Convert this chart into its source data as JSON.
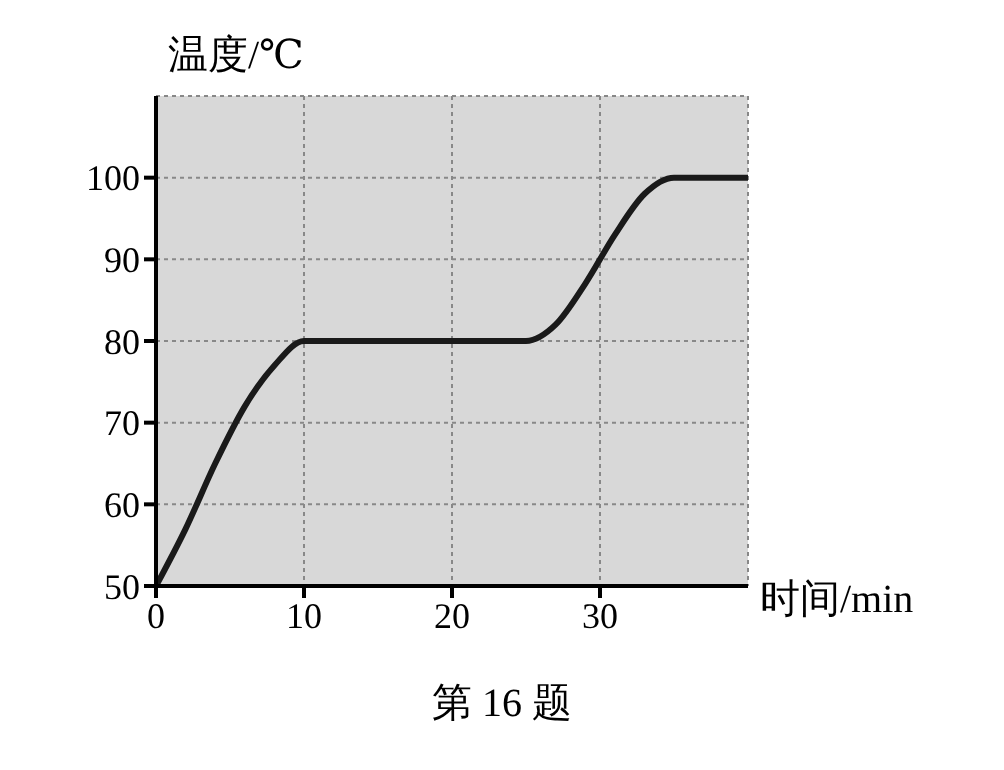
{
  "chart_data": {
    "type": "line",
    "xlabel": "时间/min",
    "ylabel": "温度/℃",
    "annotations": [
      "第 16 题"
    ],
    "x": [
      0,
      2,
      4,
      6,
      8,
      10,
      12,
      25,
      27,
      29,
      31,
      33,
      35,
      40
    ],
    "series": [
      {
        "color": "#1a1a1a",
        "values": [
          50,
          57,
          65,
          72,
          77,
          80,
          80,
          80,
          82,
          87,
          93,
          98,
          100,
          100
        ]
      }
    ],
    "xlim": [
      0,
      40
    ],
    "ylim": [
      50,
      110
    ],
    "xticks": [
      0,
      10,
      20,
      30
    ],
    "yticks": [
      50,
      60,
      70,
      80,
      90,
      100
    ],
    "grid": true,
    "marker": "none",
    "line_style": "solid"
  }
}
